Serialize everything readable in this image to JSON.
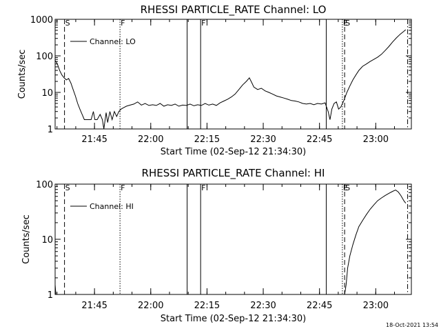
{
  "footer": {
    "timestamp": "18-Oct-2021 13:54"
  },
  "chart_data": [
    {
      "type": "line",
      "title": "RHESSI PARTICLE_RATE Channel: LO",
      "xlabel": "Start Time (02-Sep-12 21:34:30)",
      "ylabel": "Counts/sec",
      "yscale": "log",
      "ylim": [
        1,
        1000
      ],
      "y_tick_labels": [
        "1",
        "10",
        "100",
        "1000"
      ],
      "y_ticks": [
        1,
        10,
        100,
        1000
      ],
      "xlim_minutes": [
        0,
        95
      ],
      "x_tick_labels": [
        "21:45",
        "22:00",
        "22:15",
        "22:30",
        "22:45",
        "23:00"
      ],
      "x_ticks_minutes": [
        10.5,
        25.5,
        40.5,
        55.5,
        70.5,
        85.5
      ],
      "legend": {
        "label": "Channel: LO",
        "position": "top-left"
      },
      "series": [
        {
          "name": "Channel: LO",
          "points": [
            [
              0.0,
              75
            ],
            [
              0.6,
              60
            ],
            [
              1.2,
              40
            ],
            [
              1.8,
              30
            ],
            [
              2.4,
              25
            ],
            [
              3.0,
              22
            ],
            [
              3.6,
              24
            ],
            [
              4.2,
              18
            ],
            [
              4.8,
              12
            ],
            [
              5.4,
              8
            ],
            [
              6.0,
              5
            ],
            [
              6.6,
              3.5
            ],
            [
              7.2,
              2.5
            ],
            [
              7.8,
              1.8
            ],
            [
              8.4,
              1.8
            ],
            [
              9.0,
              1.8
            ],
            [
              9.6,
              1.8
            ],
            [
              10.2,
              3
            ],
            [
              10.6,
              1.8
            ],
            [
              11.2,
              1.8
            ],
            [
              12.0,
              2.5
            ],
            [
              12.6,
              1.8
            ],
            [
              13.0,
              0.9
            ],
            [
              13.6,
              2.8
            ],
            [
              14.0,
              1.5
            ],
            [
              14.6,
              3
            ],
            [
              15.2,
              1.8
            ],
            [
              15.8,
              3
            ],
            [
              16.4,
              2.2
            ],
            [
              17.0,
              3
            ],
            [
              17.6,
              3.5
            ],
            [
              18.2,
              3.8
            ],
            [
              19.0,
              4.2
            ],
            [
              20.0,
              4.5
            ],
            [
              21.0,
              4.8
            ],
            [
              22.0,
              5.5
            ],
            [
              23.0,
              4.5
            ],
            [
              24.0,
              5
            ],
            [
              25.0,
              4.4
            ],
            [
              26.0,
              4.6
            ],
            [
              27.0,
              4.4
            ],
            [
              28.0,
              5
            ],
            [
              29.0,
              4.2
            ],
            [
              30.0,
              4.6
            ],
            [
              31.0,
              4.4
            ],
            [
              32.0,
              4.8
            ],
            [
              33.0,
              4.2
            ],
            [
              34.0,
              4.5
            ],
            [
              35.0,
              4.4
            ],
            [
              36.0,
              4.8
            ],
            [
              37.0,
              4.3
            ],
            [
              38.0,
              4.6
            ],
            [
              39.0,
              4.4
            ],
            [
              40.0,
              5
            ],
            [
              41.0,
              4.5
            ],
            [
              42.0,
              4.8
            ],
            [
              43.0,
              4.4
            ],
            [
              44.0,
              5.2
            ],
            [
              45.0,
              5.8
            ],
            [
              46.0,
              6.5
            ],
            [
              47.0,
              7.5
            ],
            [
              48.0,
              9
            ],
            [
              49.0,
              12
            ],
            [
              50.0,
              16
            ],
            [
              51.0,
              20
            ],
            [
              51.8,
              25
            ],
            [
              52.5,
              18
            ],
            [
              53.0,
              14
            ],
            [
              54.0,
              12
            ],
            [
              55.0,
              13
            ],
            [
              56.0,
              11
            ],
            [
              57.0,
              10
            ],
            [
              58.0,
              9
            ],
            [
              59.0,
              8
            ],
            [
              60.0,
              7.5
            ],
            [
              61.0,
              7
            ],
            [
              62.0,
              6.5
            ],
            [
              63.0,
              6
            ],
            [
              64.0,
              5.8
            ],
            [
              65.0,
              5.5
            ],
            [
              66.0,
              5
            ],
            [
              67.0,
              4.8
            ],
            [
              68.0,
              5
            ],
            [
              69.0,
              4.6
            ],
            [
              70.0,
              5
            ],
            [
              71.0,
              4.8
            ],
            [
              72.0,
              5.2
            ],
            [
              72.8,
              3
            ],
            [
              73.3,
              1.8
            ],
            [
              73.8,
              3.5
            ],
            [
              74.4,
              5
            ],
            [
              75.0,
              5.5
            ],
            [
              75.6,
              3.5
            ],
            [
              76.2,
              4
            ],
            [
              77.0,
              6
            ],
            [
              77.8,
              10
            ],
            [
              78.6,
              15
            ],
            [
              79.4,
              22
            ],
            [
              80.2,
              30
            ],
            [
              81.0,
              40
            ],
            [
              82.0,
              52
            ],
            [
              83.0,
              60
            ],
            [
              84.0,
              70
            ],
            [
              85.0,
              80
            ],
            [
              86.0,
              92
            ],
            [
              87.0,
              110
            ],
            [
              88.0,
              140
            ],
            [
              89.0,
              180
            ],
            [
              90.0,
              240
            ],
            [
              91.0,
              310
            ],
            [
              92.0,
              390
            ],
            [
              93.0,
              470
            ],
            [
              93.5,
              520
            ]
          ]
        }
      ],
      "markers": [
        {
          "label": "S",
          "style": "dashed",
          "x_minutes": 2.5
        },
        {
          "label": "F",
          "style": "dotted",
          "x_minutes": 17.3
        },
        {
          "label": "",
          "style": "solid",
          "x_minutes": 35.2
        },
        {
          "label": "F",
          "style": "solid",
          "x_minutes": 38.8
        },
        {
          "label": "",
          "style": "solid",
          "x_minutes": 72.3
        },
        {
          "label": "E",
          "style": "dotted",
          "x_minutes": 76.6
        },
        {
          "label": "S",
          "style": "dashed",
          "x_minutes": 77.2
        },
        {
          "label": "",
          "style": "dash-dot",
          "x_minutes": 94.0
        }
      ]
    },
    {
      "type": "line",
      "title": "RHESSI PARTICLE_RATE Channel: HI",
      "xlabel": "Start Time (02-Sep-12 21:34:30)",
      "ylabel": "Counts/sec",
      "yscale": "log",
      "ylim": [
        1,
        100
      ],
      "y_tick_labels": [
        "1",
        "10",
        "100"
      ],
      "y_ticks": [
        1,
        10,
        100
      ],
      "xlim_minutes": [
        0,
        95
      ],
      "x_tick_labels": [
        "21:45",
        "22:00",
        "22:15",
        "22:30",
        "22:45",
        "23:00"
      ],
      "x_ticks_minutes": [
        10.5,
        25.5,
        40.5,
        55.5,
        70.5,
        85.5
      ],
      "legend": {
        "label": "Channel: HI",
        "position": "top-left"
      },
      "series": [
        {
          "name": "Channel: HI",
          "points": [
            [
              0.0,
              1.5
            ],
            [
              0.2,
              0.9
            ],
            [
              0.4,
              0.9
            ],
            [
              77.2,
              0.9
            ],
            [
              77.6,
              1.5
            ],
            [
              78.0,
              3
            ],
            [
              78.6,
              5
            ],
            [
              79.4,
              8
            ],
            [
              80.2,
              12
            ],
            [
              81.0,
              17
            ],
            [
              82.0,
              22
            ],
            [
              83.0,
              28
            ],
            [
              84.0,
              35
            ],
            [
              85.0,
              42
            ],
            [
              86.0,
              50
            ],
            [
              87.0,
              56
            ],
            [
              88.0,
              62
            ],
            [
              89.0,
              68
            ],
            [
              90.0,
              74
            ],
            [
              90.8,
              78
            ],
            [
              91.5,
              72
            ],
            [
              92.2,
              62
            ],
            [
              93.0,
              50
            ],
            [
              93.5,
              45
            ]
          ]
        }
      ],
      "markers": [
        {
          "label": "S",
          "style": "dashed",
          "x_minutes": 2.5
        },
        {
          "label": "F",
          "style": "dotted",
          "x_minutes": 17.3
        },
        {
          "label": "",
          "style": "solid",
          "x_minutes": 35.2
        },
        {
          "label": "F",
          "style": "solid",
          "x_minutes": 38.8
        },
        {
          "label": "",
          "style": "solid",
          "x_minutes": 72.3
        },
        {
          "label": "E",
          "style": "dotted",
          "x_minutes": 76.6
        },
        {
          "label": "S",
          "style": "dashed",
          "x_minutes": 77.2
        },
        {
          "label": "",
          "style": "dash-dot",
          "x_minutes": 94.0
        }
      ]
    }
  ]
}
